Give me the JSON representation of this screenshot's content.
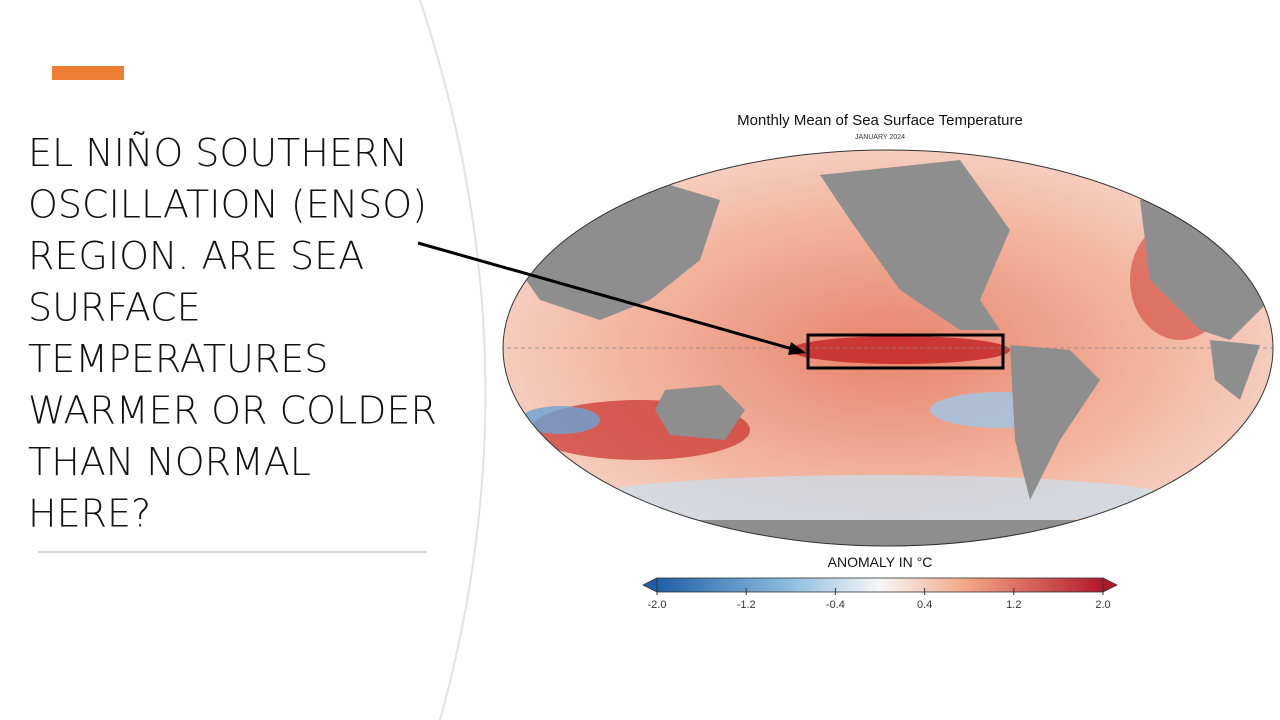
{
  "slide": {
    "title_lines": [
      "EL NIÑO SOUTHERN",
      "OSCILLATION (ENSO)",
      "REGION. ARE SEA",
      "SURFACE",
      "TEMPERATURES",
      "WARMER OR COLDER",
      "THAN NORMAL",
      "HERE?"
    ]
  },
  "map": {
    "title": "Monthly Mean of Sea Surface Temperature",
    "subtitle": "JANUARY 2024",
    "colorbar": {
      "label": "ANOMALY IN °C",
      "lim": [
        -2,
        2
      ],
      "ticks": [
        {
          "value": -2,
          "label": "-2.0"
        },
        -1.2,
        -0.4,
        0.4,
        1.2,
        {
          "value": 2,
          "label": "2.0"
        }
      ]
    }
  }
}
